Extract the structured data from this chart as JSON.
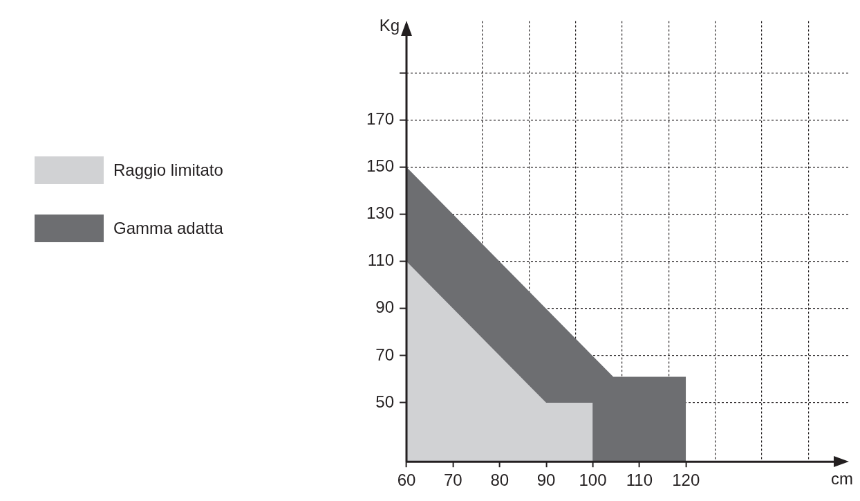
{
  "chart_data": {
    "type": "area",
    "xlabel": "cm",
    "ylabel": "Kg",
    "xlim": [
      60,
      155
    ],
    "ylim": [
      25,
      212
    ],
    "xticks": [
      60,
      70,
      {
        "value": 76.3,
        "label": null
      },
      80,
      {
        "value": 86.3,
        "label": null
      },
      90,
      {
        "value": 96.3,
        "label": null
      },
      100,
      {
        "value": 106.3,
        "label": null
      },
      110,
      {
        "value": 116.3,
        "label": null
      },
      120,
      {
        "value": 126.3,
        "label": null
      },
      {
        "value": 136.3,
        "label": null
      },
      {
        "value": 146.3,
        "label": null
      }
    ],
    "yticks": [
      50,
      70,
      90,
      110,
      130,
      150,
      170,
      {
        "value": 190,
        "label": null
      }
    ],
    "grid": true,
    "legend": "left",
    "series": [
      {
        "name": "Raggio limitato",
        "color": "#d1d2d4",
        "x": [
          60,
          90,
          100
        ],
        "values": [
          110,
          50,
          50
        ]
      },
      {
        "name": "Gamma adatta",
        "color": "#6d6e71",
        "x": [
          60,
          104.4,
          120
        ],
        "values": [
          150,
          61,
          61
        ]
      }
    ]
  }
}
